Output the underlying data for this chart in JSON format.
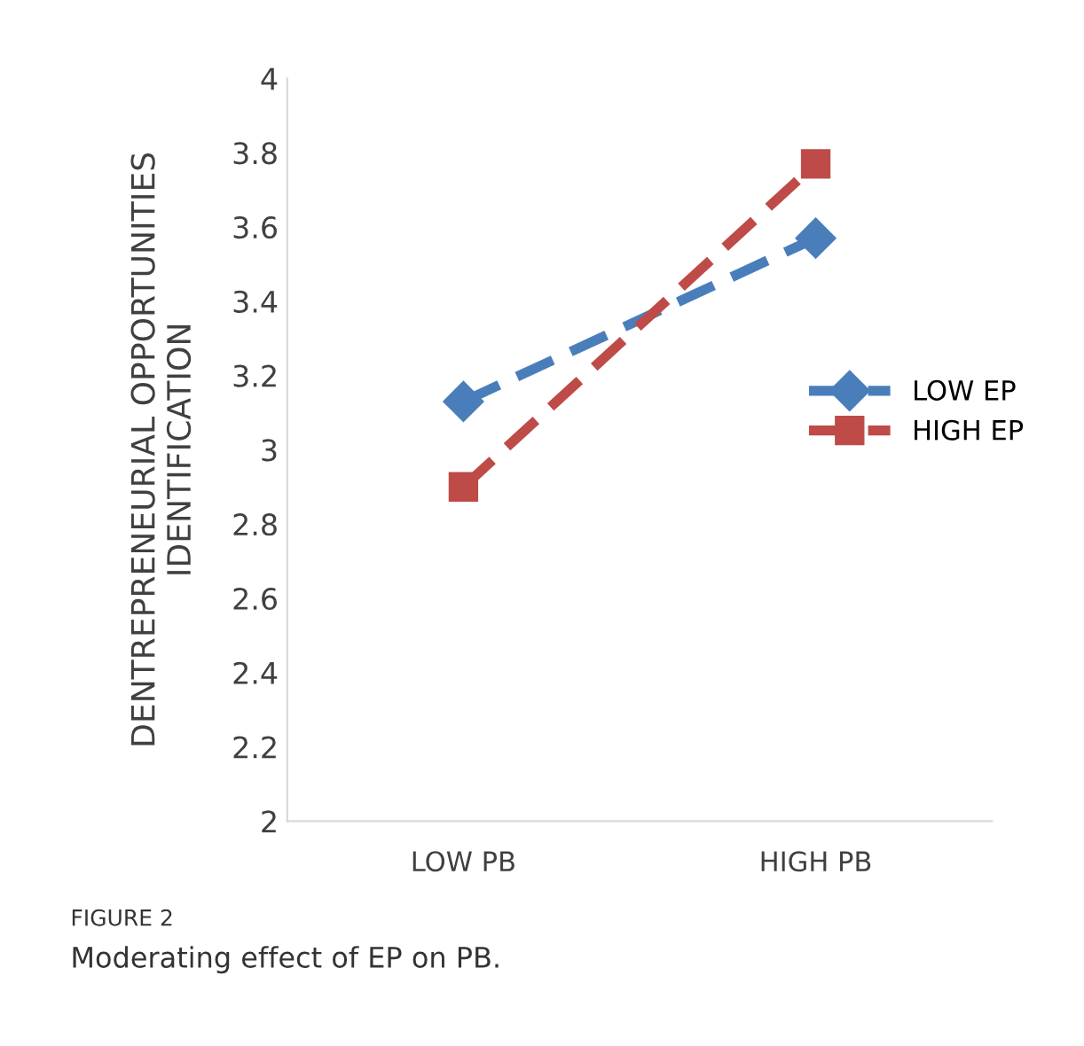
{
  "chart_data": {
    "type": "line",
    "categories": [
      "LOW PB",
      "HIGH PB"
    ],
    "ylabel": "DENTREPRENEURIAL OPPORTUNITIES\nIDENTIFICATION",
    "ylim": [
      2,
      4
    ],
    "yticks": [
      2,
      2.2,
      2.4,
      2.6,
      2.8,
      3,
      3.2,
      3.4,
      3.6,
      3.8,
      4
    ],
    "series": [
      {
        "name": "LOW EP",
        "color": "#4a7ebb",
        "values": [
          3.13,
          3.57
        ],
        "marker": "diamond",
        "line_style": "dashed"
      },
      {
        "name": "HIGH EP",
        "color": "#be4b48",
        "values": [
          2.9,
          3.77
        ],
        "marker": "square",
        "line_style": "dashed"
      }
    ],
    "legend": "right",
    "grid": false,
    "annotations": [
      "FIGURE 2",
      "Moderating effect of EP on PB."
    ]
  }
}
